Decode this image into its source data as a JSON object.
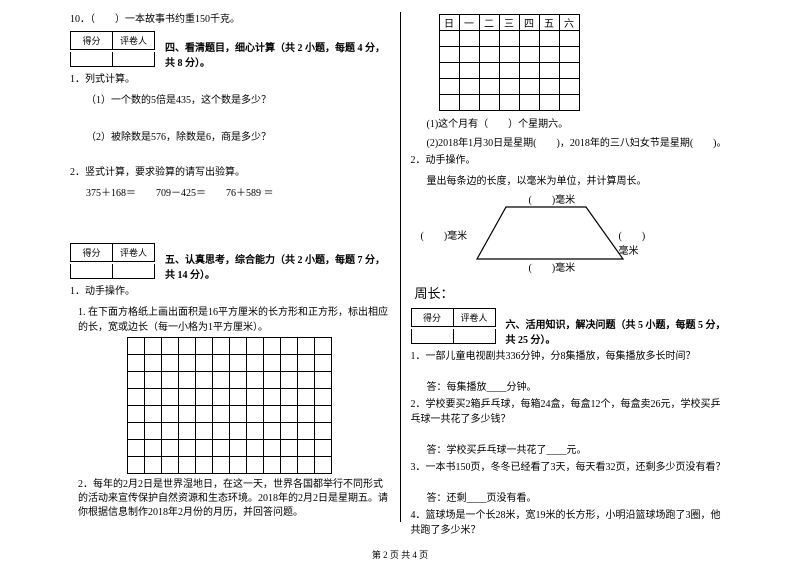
{
  "q10": "10．（　　）一本故事书约重150千克。",
  "scorebox": {
    "left": "得分",
    "right": "评卷人"
  },
  "sec4": {
    "title": "四、看清题目，细心计算（共 2 小题，每题 4 分，共 8 分）。",
    "q1": "1．列式计算。",
    "q1a": "（1）一个数的5倍是435，这个数是多少？",
    "q1b": "（2）被除数是576，除数是6，商是多少？",
    "q2": "2．竖式计算，要求验算的请写出验算。",
    "expr1": "375＋168＝",
    "expr2": "709－425＝",
    "expr3": "76＋589 ＝"
  },
  "sec5": {
    "title": "五、认真思考，综合能力（共 2 小题，每题 7 分，共 14 分）。",
    "q1": "1．动手操作。",
    "q1_desc": "1. 在下面方格纸上画出面积是16平方厘米的长方形和正方形，标出相应的长，宽或边长（每一小格为1平方厘米）。",
    "grid": {
      "rows": 8,
      "cols": 12
    },
    "q2_desc": "2．每年的2月2日是世界湿地日，在这一天，世界各国都举行不同形式的活动来宣传保护自然资源和生态环境。2018年的2月2日是星期五。请你根据信息制作2018年2月份的月历，并回答问题。"
  },
  "calendar": {
    "headers": [
      "日",
      "一",
      "二",
      "三",
      "四",
      "五",
      "六"
    ],
    "rows": 5,
    "cols": 7,
    "q_a": "(1)这个月有（　　）个星期六。",
    "q_b": "(2)2018年1月30日是星期(　　)，2018年的三八妇女节是星期(　　)。"
  },
  "trap": {
    "q": "2．动手操作。",
    "desc": "量出每条边的长度，以毫米为单位，并计算周长。",
    "top": "(　　)毫米",
    "left": "(　　)毫米",
    "right": "(　　)毫米",
    "bottom": "(　　)毫米",
    "zhouchang": "周长："
  },
  "sec6": {
    "title": "六、活用知识，解决问题（共 5 小题，每题 5 分，共 25 分）。",
    "q1": "1．一部儿童电视剧共336分钟，分8集播放，每集播放多长时间？",
    "a1": "答：每集播放____分钟。",
    "q2": "2．学校要买2箱乒乓球，每箱24盒，每盒12个，每盒卖26元，学校买乒乓球一共花了多少钱？",
    "a2": "答：学校买乒乓球一共花了____元。",
    "q3": "3．一本书150页，冬冬已经看了3天，每天看32页，还剩多少页没有看？",
    "a3": "答：还剩____页没有看。",
    "q4": "4．篮球场是一个长28米，宽19米的长方形，小明沿篮球场跑了3圈，他共跑了多少米？"
  },
  "footer": "第 2 页 共 4 页"
}
